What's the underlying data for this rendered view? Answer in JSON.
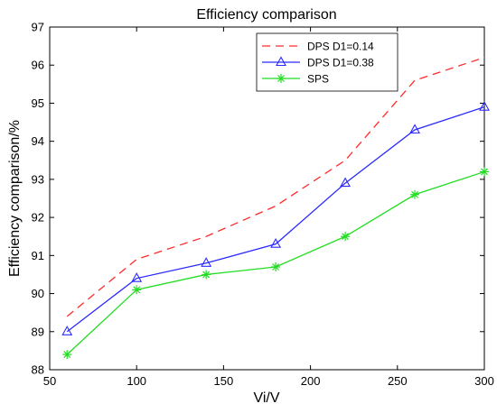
{
  "chart_data": {
    "type": "line",
    "title": "Efficiency comparison",
    "xlabel": "Vi/V",
    "ylabel": "Efficiency comparison/%",
    "xlim": [
      50,
      300
    ],
    "ylim": [
      88,
      97
    ],
    "xticks": [
      50,
      100,
      150,
      200,
      250,
      300
    ],
    "yticks": [
      88,
      89,
      90,
      91,
      92,
      93,
      94,
      95,
      96,
      97
    ],
    "grid": false,
    "legend_position": "top-right",
    "x": [
      60,
      100,
      140,
      180,
      220,
      260,
      300
    ],
    "series": [
      {
        "name": "DPS D1=0.14",
        "values": [
          89.4,
          90.9,
          91.5,
          92.3,
          93.5,
          95.6,
          96.2
        ],
        "color": "#ff2a2a",
        "line_style": "dashed",
        "marker": "none"
      },
      {
        "name": "DPS D1=0.38",
        "values": [
          89.0,
          90.4,
          90.8,
          91.3,
          92.9,
          94.3,
          94.9
        ],
        "color": "#2a2aff",
        "line_style": "solid",
        "marker": "triangle"
      },
      {
        "name": "SPS",
        "values": [
          88.4,
          90.1,
          90.5,
          90.7,
          91.5,
          92.6,
          93.2
        ],
        "color": "#22dd22",
        "line_style": "solid",
        "marker": "asterisk"
      }
    ]
  }
}
